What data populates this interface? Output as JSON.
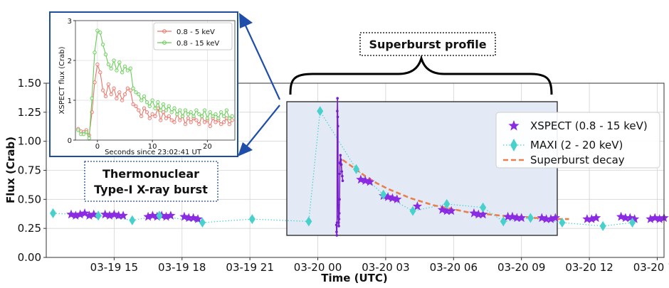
{
  "chart_data": [
    {
      "type": "scatter",
      "xlabel": "Time (UTC)",
      "ylabel": "Flux (Crab)",
      "x_unit": "hours since 03-19 12:00 UTC",
      "xlim": [
        12.0,
        39.3
      ],
      "ylim": [
        0.0,
        1.5
      ],
      "x_ticks": [
        {
          "pos": 15,
          "label": "03-19 15"
        },
        {
          "pos": 18,
          "label": "03-19 18"
        },
        {
          "pos": 21,
          "label": "03-19 21"
        },
        {
          "pos": 24,
          "label": "03-20 00"
        },
        {
          "pos": 27,
          "label": "03-20 03"
        },
        {
          "pos": 30,
          "label": "03-20 06"
        },
        {
          "pos": 33,
          "label": "03-20 09"
        },
        {
          "pos": 36,
          "label": "03-20 12"
        },
        {
          "pos": 39,
          "label": "03-20 15"
        }
      ],
      "y_ticks": [
        0.0,
        0.25,
        0.5,
        0.75,
        1.0,
        1.25,
        1.5
      ],
      "y_tick_labels": [
        "0.00",
        "0.25",
        "0.50",
        "0.75",
        "1.00",
        "1.25",
        "1.50"
      ],
      "grid": true,
      "legend_position": "right",
      "series": [
        {
          "name": "XSPECT (0.8 - 15 keV)",
          "marker": "star",
          "color": "#8a2be2",
          "x": [
            13.1,
            13.3,
            13.5,
            13.7,
            13.9,
            14.1,
            14.6,
            14.8,
            15.0,
            15.2,
            15.4,
            16.5,
            16.7,
            16.9,
            17.1,
            17.3,
            17.5,
            18.1,
            18.3,
            18.5,
            18.7,
            25.9,
            26.1,
            26.3,
            26.9,
            27.1,
            27.3,
            27.5,
            28.4,
            29.5,
            29.7,
            29.9,
            30.9,
            31.1,
            31.3,
            32.4,
            32.6,
            32.8,
            33.0,
            33.9,
            34.1,
            34.3,
            34.5,
            35.9,
            36.1,
            36.3,
            37.4,
            37.6,
            37.8,
            38.0,
            38.7,
            38.9,
            39.1,
            39.3
          ],
          "y": [
            0.37,
            0.36,
            0.37,
            0.38,
            0.36,
            0.37,
            0.37,
            0.36,
            0.37,
            0.36,
            0.36,
            0.35,
            0.36,
            0.35,
            0.36,
            0.35,
            0.36,
            0.35,
            0.34,
            0.34,
            0.33,
            0.67,
            0.66,
            0.65,
            0.53,
            0.52,
            0.51,
            0.5,
            0.44,
            0.41,
            0.4,
            0.4,
            0.38,
            0.37,
            0.37,
            0.35,
            0.35,
            0.34,
            0.34,
            0.34,
            0.33,
            0.33,
            0.34,
            0.33,
            0.33,
            0.34,
            0.35,
            0.34,
            0.34,
            0.33,
            0.33,
            0.34,
            0.33,
            0.34
          ]
        },
        {
          "name": "MAXI (2 - 20 keV)",
          "marker": "diamond",
          "color": "#48d1cc",
          "x": [
            12.3,
            14.3,
            15.8,
            17.0,
            18.9,
            21.1,
            23.6,
            24.1,
            25.7,
            26.9,
            28.2,
            29.7,
            31.3,
            32.2,
            33.4,
            34.8,
            36.6,
            37.9
          ],
          "y": [
            0.38,
            0.36,
            0.32,
            0.36,
            0.3,
            0.33,
            0.31,
            1.26,
            0.76,
            0.54,
            0.4,
            0.46,
            0.43,
            0.31,
            0.34,
            0.3,
            0.27,
            0.3
          ]
        },
        {
          "name": "Superburst decay",
          "marker": "dashed-line",
          "color": "#e9804b",
          "x": [
            25.1,
            25.6,
            26.1,
            26.6,
            27.1,
            27.6,
            28.1,
            28.6,
            29.1,
            29.6,
            30.1,
            30.6,
            31.1,
            31.6,
            32.1,
            32.6,
            33.1,
            33.6,
            34.1,
            34.6,
            35.1
          ],
          "y": [
            0.84,
            0.77,
            0.7,
            0.64,
            0.59,
            0.55,
            0.51,
            0.48,
            0.45,
            0.43,
            0.41,
            0.39,
            0.38,
            0.37,
            0.36,
            0.35,
            0.35,
            0.34,
            0.34,
            0.33,
            0.33
          ]
        }
      ],
      "burst_points": {
        "x": [
          24.82,
          24.83,
          24.84,
          24.85,
          24.86,
          24.87,
          24.88,
          24.89,
          24.9,
          24.91,
          24.92,
          24.93,
          24.94,
          24.95,
          24.96,
          24.97,
          24.98,
          24.99,
          25.0,
          25.02,
          25.04,
          25.06,
          25.08,
          25.1
        ],
        "y": [
          0.28,
          0.22,
          0.19,
          0.3,
          1.26,
          1.37,
          1.21,
          1.13,
          0.45,
          0.35,
          0.3,
          0.27,
          0.33,
          0.38,
          0.5,
          0.72,
          0.81,
          0.82,
          0.88,
          0.84,
          0.8,
          0.74,
          0.7,
          0.66
        ]
      }
    },
    {
      "type": "line",
      "xlabel": "Seconds since 23:02:41 UT",
      "ylabel": "XSPECT flux (Crab)",
      "xlim": [
        -4,
        25
      ],
      "ylim": [
        0,
        3
      ],
      "x_ticks": [
        0,
        10,
        20
      ],
      "y_ticks": [
        0,
        1,
        2,
        3
      ],
      "legend_position": "top-right",
      "series": [
        {
          "name": "0.8 - 5 keV",
          "color": "#e8746a",
          "x": [
            -3.5,
            -3,
            -2.5,
            -2,
            -1.5,
            -1,
            -0.5,
            0,
            0.5,
            1,
            1.5,
            2,
            2.5,
            3,
            3.5,
            4,
            4.5,
            5,
            5.5,
            6,
            6.5,
            7,
            7.5,
            8,
            8.5,
            9,
            9.5,
            10,
            10.5,
            11,
            11.5,
            12,
            12.5,
            13,
            13.5,
            14,
            14.5,
            15,
            15.5,
            16,
            16.5,
            17,
            17.5,
            18,
            18.5,
            19,
            19.5,
            20,
            20.5,
            21,
            21.5,
            22,
            22.5,
            23,
            23.5,
            24,
            24.5
          ],
          "y": [
            0.28,
            0.22,
            0.2,
            0.25,
            0.12,
            0.7,
            1.45,
            1.9,
            1.7,
            1.25,
            1.1,
            1.4,
            1.15,
            1.3,
            1.05,
            1.2,
            1.0,
            1.15,
            1.3,
            1.25,
            0.9,
            0.85,
            0.75,
            0.6,
            0.8,
            0.7,
            0.55,
            0.65,
            0.6,
            0.8,
            0.5,
            0.7,
            0.55,
            0.6,
            0.5,
            0.45,
            0.65,
            0.5,
            0.6,
            0.4,
            0.55,
            0.45,
            0.55,
            0.5,
            0.4,
            0.6,
            0.45,
            0.5,
            0.35,
            0.55,
            0.45,
            0.5,
            0.4,
            0.45,
            0.55,
            0.4,
            0.5
          ]
        },
        {
          "name": "0.8 - 15 keV",
          "color": "#66cc55",
          "x": [
            -3.5,
            -3,
            -2.5,
            -2,
            -1.5,
            -1,
            -0.5,
            0,
            0.5,
            1,
            1.5,
            2,
            2.5,
            3,
            3.5,
            4,
            4.5,
            5,
            5.5,
            6,
            6.5,
            7,
            7.5,
            8,
            8.5,
            9,
            9.5,
            10,
            10.5,
            11,
            11.5,
            12,
            12.5,
            13,
            13.5,
            14,
            14.5,
            15,
            15.5,
            16,
            16.5,
            17,
            17.5,
            18,
            18.5,
            19,
            19.5,
            20,
            20.5,
            21,
            21.5,
            22,
            22.5,
            23,
            23.5,
            24,
            24.5
          ],
          "y": [
            0.25,
            0.15,
            0.15,
            0.2,
            0.05,
            1.05,
            2.2,
            2.75,
            2.7,
            2.4,
            2.15,
            1.9,
            1.8,
            2.0,
            1.75,
            1.95,
            1.7,
            1.85,
            1.75,
            1.8,
            1.3,
            1.2,
            1.15,
            1.0,
            1.1,
            0.95,
            0.85,
            1.0,
            0.8,
            0.95,
            0.75,
            0.9,
            0.75,
            0.85,
            0.7,
            0.8,
            0.65,
            0.75,
            0.6,
            0.75,
            0.65,
            0.7,
            0.6,
            0.75,
            0.65,
            0.6,
            0.75,
            0.55,
            0.7,
            0.6,
            0.65,
            0.55,
            0.7,
            0.6,
            0.75,
            0.55,
            0.6
          ]
        }
      ]
    }
  ],
  "annotations": {
    "superburst_label": "Superburst profile",
    "typeI_label_line1": "Thermonuclear",
    "typeI_label_line2": "Type-I X-ray burst"
  },
  "colors": {
    "xspect": "#8a2be2",
    "maxi": "#48d1cc",
    "decay": "#e9804b",
    "shade": "#e3eaf6",
    "callout_border": "#1f4e9e",
    "arrow": "#1f4eaa"
  }
}
